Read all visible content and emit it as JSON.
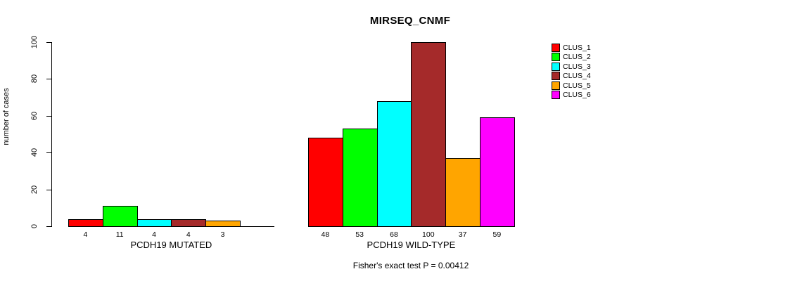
{
  "title": "MIRSEQ_CNMF",
  "ylabel": "number of cases",
  "footnote": "Fisher's exact test P = 0.00412",
  "chart_data": {
    "type": "bar",
    "title": "MIRSEQ_CNMF",
    "ylabel": "number of cases",
    "xlabel": "",
    "ylim": [
      0,
      100
    ],
    "yticks": [
      0,
      20,
      40,
      60,
      80,
      100
    ],
    "ytick_labels": [
      "0",
      "20",
      "40",
      "60",
      "80",
      "100"
    ],
    "grid": false,
    "legend": {
      "position": "right",
      "entries": [
        {
          "label": "CLUS_1",
          "color": "#FF0000"
        },
        {
          "label": "CLUS_2",
          "color": "#00FF00"
        },
        {
          "label": "CLUS_3",
          "color": "#00FFFF"
        },
        {
          "label": "CLUS_4",
          "color": "#A52A2A"
        },
        {
          "label": "CLUS_5",
          "color": "#FFA500"
        },
        {
          "label": "CLUS_6",
          "color": "#FF00FF"
        }
      ]
    },
    "categories": [
      "CLUS_1",
      "CLUS_2",
      "CLUS_3",
      "CLUS_4",
      "CLUS_5",
      "CLUS_6"
    ],
    "groups": [
      {
        "label": "PCDH19 MUTATED",
        "values": [
          4,
          11,
          4,
          4,
          3,
          0
        ],
        "bar_labels": [
          "4",
          "11",
          "4",
          "4",
          "3",
          ""
        ]
      },
      {
        "label": "PCDH19 WILD-TYPE",
        "values": [
          48,
          53,
          68,
          100,
          37,
          59
        ],
        "bar_labels": [
          "48",
          "53",
          "68",
          "100",
          "37",
          "59"
        ]
      }
    ],
    "annotation": "Fisher's exact test P = 0.00412"
  }
}
